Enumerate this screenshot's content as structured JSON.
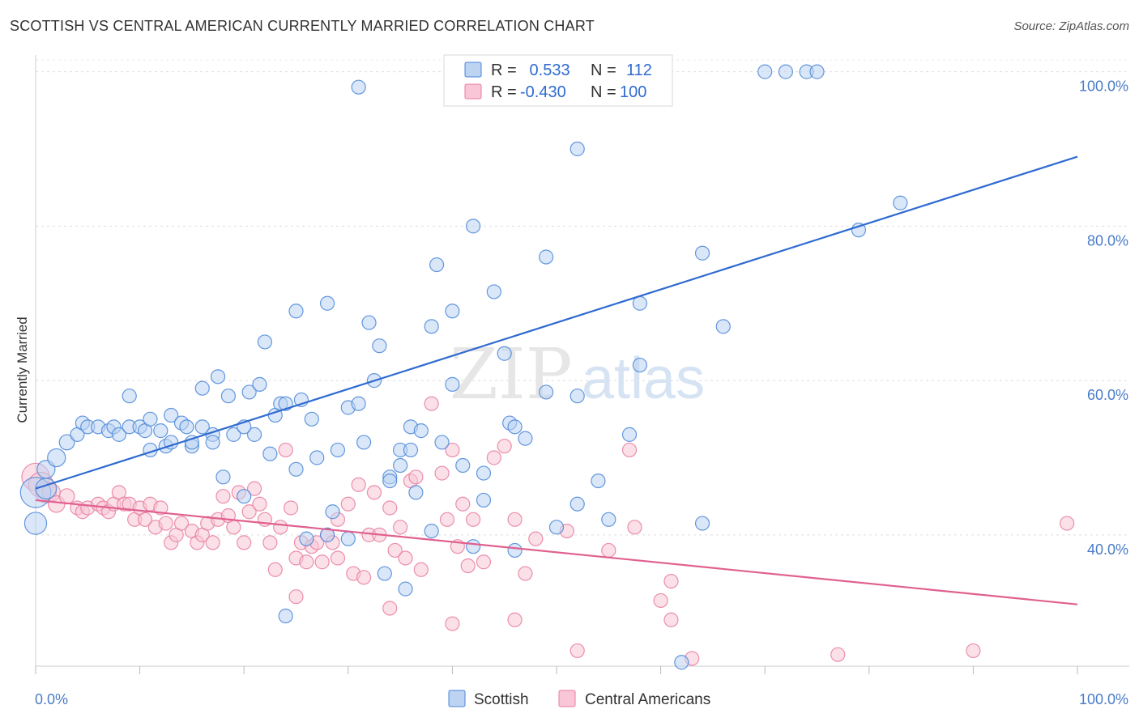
{
  "title": "SCOTTISH VS CENTRAL AMERICAN CURRENTLY MARRIED CORRELATION CHART",
  "source": "Source: ZipAtlas.com",
  "watermark": {
    "zip": "ZIP",
    "atlas": "atlas"
  },
  "colors": {
    "scottish": "#4a86d8",
    "central": "#e87da0",
    "scottish_line": "#2f6bd1",
    "central_line": "#e0608f"
  },
  "legend": {
    "rows": [
      {
        "r_label": "R =",
        "r_value": " 0.533",
        "n_label": "N =",
        "n_value": "112"
      },
      {
        "r_label": "R =",
        "r_value": "-0.430",
        "n_label": "N =",
        "n_value": "100"
      }
    ]
  },
  "chart_data": {
    "type": "scatter",
    "title": "SCOTTISH VS CENTRAL AMERICAN CURRENTLY MARRIED CORRELATION CHART",
    "xlabel": "",
    "ylabel": "Currently Married",
    "xlim": [
      0,
      100
    ],
    "ylim": [
      23,
      103
    ],
    "x_tick_labels": [
      "0.0%",
      "100.0%"
    ],
    "y_ticks": [
      40,
      60,
      80,
      100
    ],
    "y_tick_labels": [
      "40.0%",
      "60.0%",
      "80.0%",
      "100.0%"
    ],
    "grid": true,
    "legend_position": "top-center",
    "series": [
      {
        "name": "Scottish",
        "r": 0.533,
        "n": 112,
        "trend": {
          "x": [
            0,
            100
          ],
          "y": [
            46.0,
            89.0
          ]
        },
        "points": [
          [
            0,
            45.5,
            2.2
          ],
          [
            0,
            41.5,
            1.6
          ],
          [
            1,
            46,
            1.5
          ],
          [
            1,
            48.5,
            1.3
          ],
          [
            2,
            50,
            1.3
          ],
          [
            3,
            52,
            1.1
          ],
          [
            4,
            53,
            1
          ],
          [
            4.5,
            54.5,
            1
          ],
          [
            5,
            54,
            1
          ],
          [
            6,
            54,
            1
          ],
          [
            7,
            53.5,
            1
          ],
          [
            7.5,
            54,
            1
          ],
          [
            8,
            53,
            1
          ],
          [
            9,
            54,
            1
          ],
          [
            9,
            58,
            1
          ],
          [
            10,
            54,
            1
          ],
          [
            10.5,
            53.5,
            1
          ],
          [
            11,
            55,
            1
          ],
          [
            11,
            51,
            1
          ],
          [
            12,
            53.5,
            1
          ],
          [
            12.5,
            51.5,
            1
          ],
          [
            13,
            52,
            1
          ],
          [
            13,
            55.5,
            1
          ],
          [
            14,
            54.5,
            1
          ],
          [
            14.5,
            54,
            1
          ],
          [
            15,
            51.5,
            1
          ],
          [
            16,
            54,
            1
          ],
          [
            16,
            59,
            1
          ],
          [
            17,
            53,
            1
          ],
          [
            17,
            52,
            1
          ],
          [
            17.5,
            60.5,
            1
          ],
          [
            18,
            47.5,
            1
          ],
          [
            18.5,
            58,
            1
          ],
          [
            19,
            53,
            1
          ],
          [
            20,
            45,
            1
          ],
          [
            20.5,
            58.5,
            1
          ],
          [
            21,
            53,
            1
          ],
          [
            21.5,
            59.5,
            1
          ],
          [
            22,
            65,
            1
          ],
          [
            22.5,
            50.5,
            1
          ],
          [
            23,
            55.5,
            1
          ],
          [
            23.5,
            57,
            1
          ],
          [
            24,
            57,
            1
          ],
          [
            25,
            69,
            1
          ],
          [
            25,
            48.5,
            1
          ],
          [
            25.5,
            57.5,
            1
          ],
          [
            26.5,
            55,
            1
          ],
          [
            27,
            50,
            1
          ],
          [
            28,
            70,
            1
          ],
          [
            28.5,
            43,
            1
          ],
          [
            29,
            51,
            1
          ],
          [
            30,
            56.5,
            1
          ],
          [
            31,
            57,
            1
          ],
          [
            31.5,
            52,
            1
          ],
          [
            32,
            67.5,
            1
          ],
          [
            32.5,
            60,
            1
          ],
          [
            33,
            64.5,
            1
          ],
          [
            34,
            47.5,
            1
          ],
          [
            34,
            47,
            1
          ],
          [
            35,
            49,
            1
          ],
          [
            35,
            51,
            1
          ],
          [
            36,
            54,
            1
          ],
          [
            36.5,
            45.5,
            1
          ],
          [
            37,
            53.5,
            1
          ],
          [
            38,
            67,
            1
          ],
          [
            38.5,
            75,
            1
          ],
          [
            39,
            52,
            1
          ],
          [
            40,
            69,
            1
          ],
          [
            40,
            59.5,
            1
          ],
          [
            41,
            49,
            1
          ],
          [
            42,
            80,
            1
          ],
          [
            43,
            44.5,
            1
          ],
          [
            44,
            71.5,
            1
          ],
          [
            45,
            63.5,
            1
          ],
          [
            45.5,
            54.5,
            1
          ],
          [
            46,
            54,
            1
          ],
          [
            49,
            76,
            1
          ],
          [
            49,
            58.5,
            1
          ],
          [
            52,
            90,
            1
          ],
          [
            52,
            58,
            1
          ],
          [
            54,
            47,
            1
          ],
          [
            55,
            42,
            1
          ],
          [
            58,
            70,
            1
          ],
          [
            58,
            62,
            1
          ],
          [
            64,
            76.5,
            1
          ],
          [
            66,
            67,
            1
          ],
          [
            70,
            100,
            1
          ],
          [
            72,
            100,
            1
          ],
          [
            74,
            100,
            1
          ],
          [
            75,
            100,
            1
          ],
          [
            79,
            79.5,
            1
          ],
          [
            83,
            83,
            1
          ],
          [
            31,
            98,
            1
          ],
          [
            30,
            39.5,
            1
          ],
          [
            26,
            39.5,
            1
          ],
          [
            33.5,
            35,
            1
          ],
          [
            35.5,
            33,
            1
          ],
          [
            24,
            29.5,
            1
          ],
          [
            42,
            38.5,
            1
          ],
          [
            46,
            38,
            1
          ],
          [
            52,
            44,
            1
          ],
          [
            64,
            41.5,
            1
          ],
          [
            62,
            23.5,
            1
          ],
          [
            57,
            53,
            1
          ],
          [
            50,
            41,
            1
          ],
          [
            47,
            52.5,
            1
          ],
          [
            28,
            40,
            1
          ],
          [
            38,
            40.5,
            1
          ],
          [
            43,
            48,
            1
          ],
          [
            20,
            54,
            1
          ],
          [
            15,
            52,
            1
          ],
          [
            36,
            51,
            1
          ]
        ]
      },
      {
        "name": "Central Americans",
        "r": -0.43,
        "n": 100,
        "trend": {
          "x": [
            0,
            100
          ],
          "y": [
            44.5,
            31.0
          ]
        },
        "points": [
          [
            0,
            47.5,
            2
          ],
          [
            0.5,
            46.5,
            1.8
          ],
          [
            1,
            45.5,
            1.5
          ],
          [
            1.5,
            45.5,
            1.3
          ],
          [
            2,
            44,
            1.2
          ],
          [
            3,
            45,
            1.1
          ],
          [
            4,
            43.5,
            1
          ],
          [
            4.5,
            43,
            1
          ],
          [
            5,
            43.5,
            1
          ],
          [
            6,
            44,
            1
          ],
          [
            6.5,
            43.5,
            1
          ],
          [
            7,
            43,
            1
          ],
          [
            7.5,
            44,
            1
          ],
          [
            8,
            45.5,
            1
          ],
          [
            8.5,
            44,
            1
          ],
          [
            9,
            44,
            1
          ],
          [
            9.5,
            42,
            1
          ],
          [
            10,
            43.5,
            1
          ],
          [
            10.5,
            42,
            1
          ],
          [
            11,
            44,
            1
          ],
          [
            11.5,
            41,
            1
          ],
          [
            12,
            43.5,
            1
          ],
          [
            12.5,
            41.5,
            1
          ],
          [
            13,
            39,
            1
          ],
          [
            13.5,
            40,
            1
          ],
          [
            14,
            41.5,
            1
          ],
          [
            15,
            40.5,
            1
          ],
          [
            15.5,
            39,
            1
          ],
          [
            16,
            40,
            1
          ],
          [
            16.5,
            41.5,
            1
          ],
          [
            17,
            39,
            1
          ],
          [
            17.5,
            42,
            1
          ],
          [
            18,
            45,
            1
          ],
          [
            18.5,
            42.5,
            1
          ],
          [
            19,
            41,
            1
          ],
          [
            19.5,
            45.5,
            1
          ],
          [
            20,
            39,
            1
          ],
          [
            20.5,
            43,
            1
          ],
          [
            21,
            46,
            1
          ],
          [
            21.5,
            44,
            1
          ],
          [
            22,
            42,
            1
          ],
          [
            22.5,
            39,
            1
          ],
          [
            23,
            35.5,
            1
          ],
          [
            23.5,
            41,
            1
          ],
          [
            24,
            51,
            1
          ],
          [
            24.5,
            43.5,
            1
          ],
          [
            25,
            37,
            1
          ],
          [
            25.5,
            39,
            1
          ],
          [
            26,
            36.5,
            1
          ],
          [
            26.5,
            38.5,
            1
          ],
          [
            27,
            39,
            1
          ],
          [
            27.5,
            36.5,
            1
          ],
          [
            28,
            40,
            1
          ],
          [
            28.5,
            39,
            1
          ],
          [
            29,
            37,
            1
          ],
          [
            30,
            44,
            1
          ],
          [
            30.5,
            35,
            1
          ],
          [
            31,
            46.5,
            1
          ],
          [
            31.5,
            34.5,
            1
          ],
          [
            32,
            40,
            1
          ],
          [
            32.5,
            45.5,
            1
          ],
          [
            33,
            40,
            1
          ],
          [
            34,
            43.5,
            1
          ],
          [
            34.5,
            38,
            1
          ],
          [
            35,
            41,
            1
          ],
          [
            35.5,
            37,
            1
          ],
          [
            36,
            47,
            1
          ],
          [
            36.5,
            47.5,
            1
          ],
          [
            37,
            35.5,
            1
          ],
          [
            38,
            57,
            1
          ],
          [
            39,
            48,
            1
          ],
          [
            39.5,
            42,
            1
          ],
          [
            40,
            51,
            1
          ],
          [
            40.5,
            38.5,
            1
          ],
          [
            41,
            44,
            1
          ],
          [
            41.5,
            36,
            1
          ],
          [
            42,
            42,
            1
          ],
          [
            43,
            36.5,
            1
          ],
          [
            44,
            50,
            1
          ],
          [
            45,
            51.5,
            1
          ],
          [
            46,
            42,
            1
          ],
          [
            48,
            39.5,
            1
          ],
          [
            51,
            40.5,
            1
          ],
          [
            55,
            38,
            1
          ],
          [
            57,
            51,
            1
          ],
          [
            57.5,
            41,
            1
          ],
          [
            60,
            31.5,
            1
          ],
          [
            61,
            29,
            1
          ],
          [
            63,
            24,
            1
          ],
          [
            25,
            32,
            1
          ],
          [
            34,
            30.5,
            1
          ],
          [
            40,
            28.5,
            1
          ],
          [
            46,
            29,
            1
          ],
          [
            52,
            25,
            1
          ],
          [
            61,
            34,
            1
          ],
          [
            77,
            24.5,
            1
          ],
          [
            90,
            25,
            1
          ],
          [
            99,
            41.5,
            1
          ],
          [
            47,
            35,
            1
          ],
          [
            29,
            42,
            1
          ]
        ]
      }
    ]
  }
}
